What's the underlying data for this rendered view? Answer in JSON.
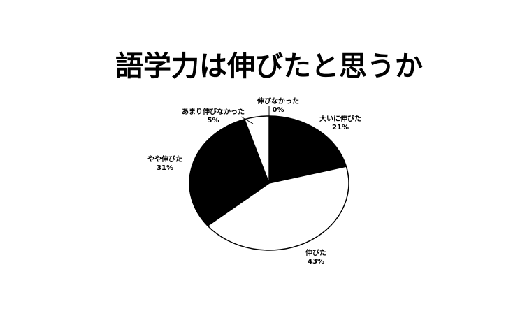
{
  "chart_data": {
    "type": "pie",
    "title": "語学力は伸びたと思うか",
    "categories": [
      "伸びなかった",
      "大いに伸びた",
      "伸びた",
      "やや伸びた",
      "あまり伸びなかった"
    ],
    "values": [
      0,
      21,
      43,
      31,
      5
    ],
    "value_labels": [
      "0%",
      "21%",
      "43%",
      "31%",
      "5%"
    ],
    "colors": [
      "#ffffff",
      "#000000",
      "#ffffff",
      "#000000",
      "#ffffff"
    ]
  }
}
